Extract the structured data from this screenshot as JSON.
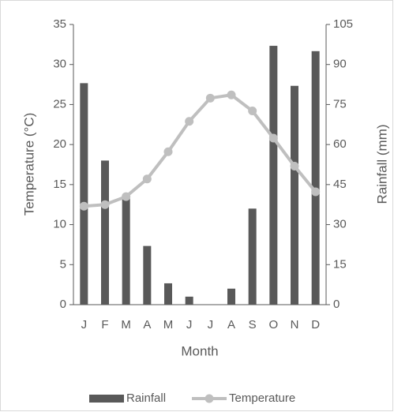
{
  "chart_data": {
    "type": "combo",
    "categories": [
      "J",
      "F",
      "M",
      "A",
      "M",
      "J",
      "J",
      "A",
      "S",
      "O",
      "N",
      "D"
    ],
    "x_label": "Month",
    "y_label": "Temperature (°C)",
    "y2_label": "Rainfall (mm)",
    "series": [
      {
        "name": "Rainfall",
        "type": "bar",
        "axis": "y2",
        "color": "#595959",
        "values": [
          83,
          54,
          40,
          22,
          8,
          3,
          0,
          6,
          36,
          97,
          82,
          95
        ]
      },
      {
        "name": "Temperature",
        "type": "line",
        "axis": "y",
        "color": "#bfbfbf",
        "values": [
          12.3,
          12.5,
          13.5,
          15.7,
          19.1,
          22.9,
          25.8,
          26.2,
          24.2,
          20.8,
          17.3,
          14.1
        ]
      }
    ],
    "ylim": [
      0,
      35
    ],
    "yticks": [
      0,
      5,
      10,
      15,
      20,
      25,
      30,
      35
    ],
    "y2lim": [
      0,
      105
    ],
    "y2ticks": [
      0,
      15,
      30,
      45,
      60,
      75,
      90,
      105
    ],
    "grid": false,
    "legend": "bottom"
  }
}
